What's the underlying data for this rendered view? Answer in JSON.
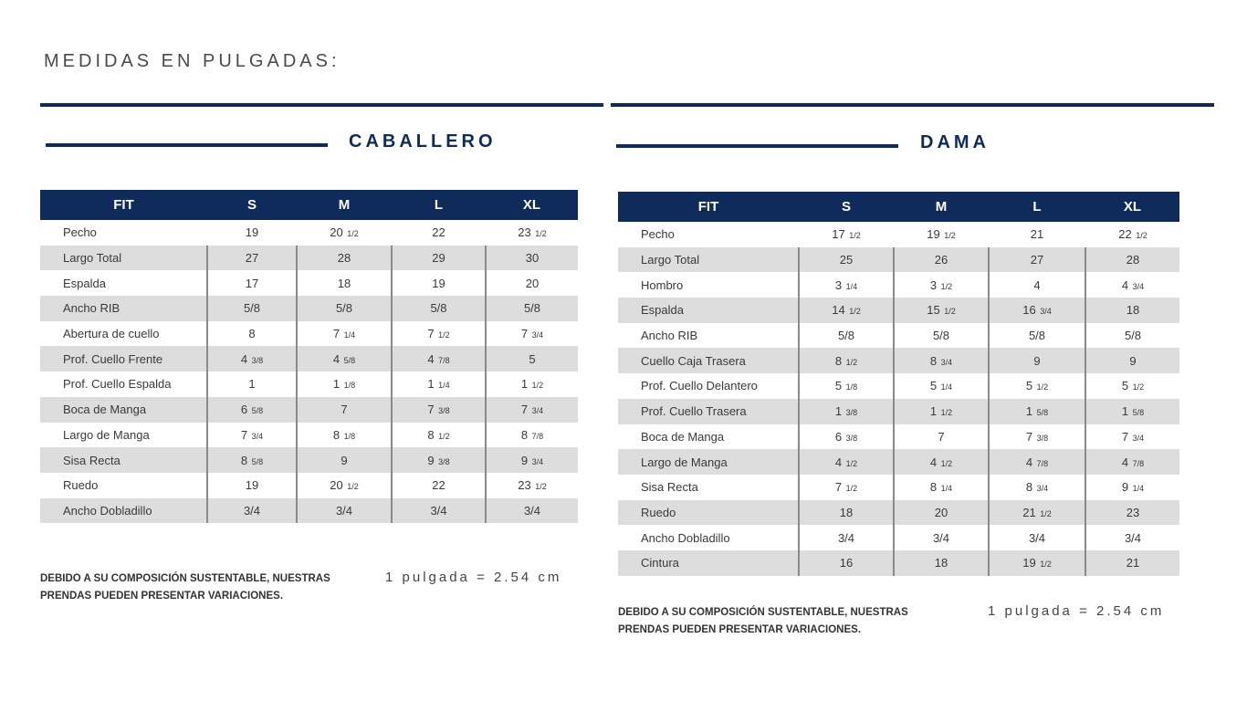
{
  "page_title": "MEDIDAS EN PULGADAS:",
  "colors": {
    "navy": "#0e2b5c",
    "row_shade": "#dddddd",
    "text": "#3a3a3a"
  },
  "caballero": {
    "title": "CABALLERO",
    "headers": [
      "FIT",
      "S",
      "M",
      "L",
      "XL"
    ],
    "rows": [
      [
        "Pecho",
        "19",
        "20 1/2",
        "22",
        "23 1/2"
      ],
      [
        "Largo Total",
        "27",
        "28",
        "29",
        "30"
      ],
      [
        "Espalda",
        "17",
        "18",
        "19",
        "20"
      ],
      [
        "Ancho RIB",
        "5/8",
        "5/8",
        "5/8",
        "5/8"
      ],
      [
        "Abertura de cuello",
        "8",
        "7 1/4",
        "7 1/2",
        "7 3/4"
      ],
      [
        "Prof. Cuello Frente",
        "4 3/8",
        "4 5/8",
        "4 7/8",
        "5"
      ],
      [
        "Prof. Cuello Espalda",
        "1",
        "1 1/8",
        "1 1/4",
        "1 1/2"
      ],
      [
        "Boca de Manga",
        "6 5/8",
        "7",
        "7 3/8",
        "7 3/4"
      ],
      [
        "Largo de Manga",
        "7 3/4",
        "8 1/8",
        "8 1/2",
        "8 7/8"
      ],
      [
        "Sisa Recta",
        "8 5/8",
        "9",
        "9 3/8",
        "9 3/4"
      ],
      [
        "Ruedo",
        "19",
        "20 1/2",
        "22",
        "23 1/2"
      ],
      [
        "Ancho Dobladillo",
        "3/4",
        "3/4",
        "3/4",
        "3/4"
      ]
    ],
    "note": "DEBIDO A SU COMPOSICIÓN SUSTENTABLE, NUESTRAS PRENDAS PUEDEN PRESENTAR VARIACIONES.",
    "conversion": "1 pulgada = 2.54 cm"
  },
  "dama": {
    "title": "DAMA",
    "headers": [
      "FIT",
      "S",
      "M",
      "L",
      "XL"
    ],
    "rows": [
      [
        "Pecho",
        "17 1/2",
        "19 1/2",
        "21",
        "22 1/2"
      ],
      [
        "Largo Total",
        "25",
        "26",
        "27",
        "28"
      ],
      [
        "Hombro",
        "3 1/4",
        "3 1/2",
        "4",
        "4 3/4"
      ],
      [
        "Espalda",
        "14 1/2",
        "15 1/2",
        "16 3/4",
        "18"
      ],
      [
        "Ancho RIB",
        "5/8",
        "5/8",
        "5/8",
        "5/8"
      ],
      [
        "Cuello Caja Trasera",
        "8 1/2",
        "8 3/4",
        "9",
        "9"
      ],
      [
        "Prof. Cuello Delantero",
        "5 1/8",
        "5 1/4",
        "5 1/2",
        "5 1/2"
      ],
      [
        "Prof. Cuello Trasera",
        "1 3/8",
        "1 1/2",
        "1 5/8",
        "1 5/8"
      ],
      [
        "Boca de Manga",
        "6 3/8",
        "7",
        "7 3/8",
        "7 3/4"
      ],
      [
        "Largo de Manga",
        "4 1/2",
        "4 1/2",
        "4 7/8",
        "4 7/8"
      ],
      [
        "Sisa Recta",
        "7 1/2",
        "8 1/4",
        "8 3/4",
        "9 1/4"
      ],
      [
        "Ruedo",
        "18",
        "20",
        "21 1/2",
        "23"
      ],
      [
        "Ancho Dobladillo",
        "3/4",
        "3/4",
        "3/4",
        "3/4"
      ],
      [
        "Cintura",
        "16",
        "18",
        "19 1/2",
        "21"
      ]
    ],
    "note": "DEBIDO A SU COMPOSICIÓN SUSTENTABLE, NUESTRAS PRENDAS PUEDEN PRESENTAR VARIACIONES.",
    "conversion": "1 pulgada = 2.54 cm"
  }
}
